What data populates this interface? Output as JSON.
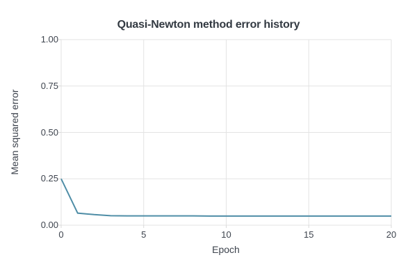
{
  "chart_data": {
    "type": "line",
    "title": "Quasi-Newton method error history",
    "xlabel": "Epoch",
    "ylabel": "Mean squared error",
    "x": [
      0,
      1,
      2,
      3,
      4,
      5,
      6,
      7,
      8,
      9,
      10,
      11,
      12,
      13,
      14,
      15,
      16,
      17,
      18,
      19,
      20
    ],
    "y": [
      0.25,
      0.065,
      0.057,
      0.051,
      0.05,
      0.05,
      0.05,
      0.05,
      0.05,
      0.049,
      0.049,
      0.049,
      0.049,
      0.049,
      0.049,
      0.049,
      0.049,
      0.049,
      0.049,
      0.049,
      0.049
    ],
    "xlim": [
      0,
      20
    ],
    "ylim": [
      0,
      1
    ],
    "xticks": {
      "values": [
        0,
        5,
        10,
        15,
        20
      ],
      "labels": [
        "0",
        "5",
        "10",
        "15",
        "20"
      ]
    },
    "yticks": {
      "values": [
        0,
        0.25,
        0.5,
        0.75,
        1
      ],
      "labels": [
        "0.00",
        "0.25",
        "0.50",
        "0.75",
        "1.00"
      ]
    },
    "grid": true,
    "legend": false,
    "colors": {
      "line": "#4e8da6",
      "grid": "#e3e3e3",
      "tick_mark": "#d9d9d9",
      "text": "#3d434d",
      "title": "#333a42",
      "background": "#ffffff"
    }
  }
}
